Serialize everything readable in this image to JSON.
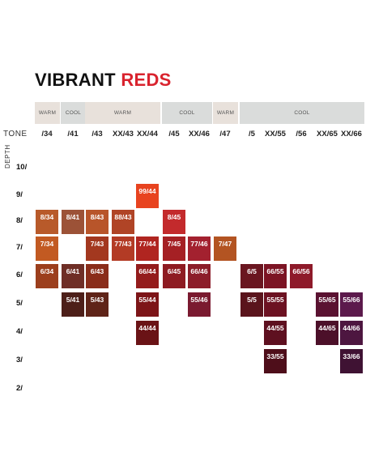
{
  "title": {
    "part1": "VIBRANT",
    "part2": "REDS"
  },
  "groups": [
    {
      "label": "WARM",
      "bg": "#e8e1db",
      "from": "34",
      "to": "34"
    },
    {
      "label": "COOL",
      "bg": "#dadcdb",
      "from": "41",
      "to": "41"
    },
    {
      "label": "WARM",
      "bg": "#e8e1db",
      "from": "43",
      "to": "44"
    },
    {
      "label": "COOL",
      "bg": "#dadcdb",
      "from": "45",
      "to": "46"
    },
    {
      "label": "WARM",
      "bg": "#e8e1db",
      "from": "47",
      "to": "47"
    },
    {
      "label": "COOL",
      "bg": "#dadcdb",
      "from": "5",
      "to": "66"
    }
  ],
  "tone_label": "TONE",
  "depth_label": "DEPTH",
  "columns": [
    {
      "key": "34",
      "label": "/34"
    },
    {
      "key": "41",
      "label": "/41"
    },
    {
      "key": "43",
      "label": "/43"
    },
    {
      "key": "4344",
      "label": "XX/43"
    },
    {
      "key": "44",
      "label": "XX/44"
    },
    {
      "key": "45",
      "label": "/45"
    },
    {
      "key": "46",
      "label": "XX/46"
    },
    {
      "key": "47",
      "label": "/47"
    },
    {
      "key": "5",
      "label": "/5"
    },
    {
      "key": "55",
      "label": "XX/55"
    },
    {
      "key": "56",
      "label": "/56"
    },
    {
      "key": "65",
      "label": "XX/65"
    },
    {
      "key": "66",
      "label": "XX/66"
    }
  ],
  "rows": [
    {
      "key": "10",
      "label": "10/"
    },
    {
      "key": "9",
      "label": "9/"
    },
    {
      "key": "8",
      "label": "8/"
    },
    {
      "key": "7",
      "label": "7/"
    },
    {
      "key": "6",
      "label": "6/"
    },
    {
      "key": "5",
      "label": "5/"
    },
    {
      "key": "4",
      "label": "4/"
    },
    {
      "key": "3",
      "label": "3/"
    },
    {
      "key": "2",
      "label": "2/"
    }
  ],
  "swatches": [
    {
      "row": "9",
      "col": "44",
      "label": "99/44",
      "color": "#e8431f"
    },
    {
      "row": "8",
      "col": "34",
      "label": "8/34",
      "color": "#b85a2a"
    },
    {
      "row": "8",
      "col": "41",
      "label": "8/41",
      "color": "#9c5237"
    },
    {
      "row": "8",
      "col": "43",
      "label": "8/43",
      "color": "#b8552a"
    },
    {
      "row": "8",
      "col": "4344",
      "label": "88/43",
      "color": "#b04426"
    },
    {
      "row": "8",
      "col": "45",
      "label": "8/45",
      "color": "#c32a2c"
    },
    {
      "row": "7",
      "col": "34",
      "label": "7/34",
      "color": "#c25a22"
    },
    {
      "row": "7",
      "col": "43",
      "label": "7/43",
      "color": "#a3381f"
    },
    {
      "row": "7",
      "col": "4344",
      "label": "77/43",
      "color": "#b33b25"
    },
    {
      "row": "7",
      "col": "44",
      "label": "77/44",
      "color": "#b02520"
    },
    {
      "row": "7",
      "col": "45",
      "label": "7/45",
      "color": "#a52024"
    },
    {
      "row": "7",
      "col": "46",
      "label": "77/46",
      "color": "#a3212f"
    },
    {
      "row": "7",
      "col": "47",
      "label": "7/47",
      "color": "#b35422"
    },
    {
      "row": "6",
      "col": "34",
      "label": "6/34",
      "color": "#9c3f1d"
    },
    {
      "row": "6",
      "col": "41",
      "label": "6/41",
      "color": "#6f2e26"
    },
    {
      "row": "6",
      "col": "43",
      "label": "6/43",
      "color": "#8a2d1a"
    },
    {
      "row": "6",
      "col": "44",
      "label": "66/44",
      "color": "#941c1c"
    },
    {
      "row": "6",
      "col": "45",
      "label": "6/45",
      "color": "#8e1b22"
    },
    {
      "row": "6",
      "col": "46",
      "label": "66/46",
      "color": "#8c1d2a"
    },
    {
      "row": "6",
      "col": "5",
      "label": "6/5",
      "color": "#6a1620"
    },
    {
      "row": "6",
      "col": "55",
      "label": "66/55",
      "color": "#7c1424"
    },
    {
      "row": "6",
      "col": "56",
      "label": "66/56",
      "color": "#8e1a2a"
    },
    {
      "row": "5",
      "col": "41",
      "label": "5/41",
      "color": "#4d1f19"
    },
    {
      "row": "5",
      "col": "43",
      "label": "5/43",
      "color": "#5f2418"
    },
    {
      "row": "5",
      "col": "44",
      "label": "55/44",
      "color": "#7d1518"
    },
    {
      "row": "5",
      "col": "46",
      "label": "55/46",
      "color": "#7a1a30"
    },
    {
      "row": "5",
      "col": "5",
      "label": "5/5",
      "color": "#5a141c"
    },
    {
      "row": "5",
      "col": "55",
      "label": "55/55",
      "color": "#6c1222"
    },
    {
      "row": "5",
      "col": "65",
      "label": "55/65",
      "color": "#5a1231"
    },
    {
      "row": "5",
      "col": "66",
      "label": "55/66",
      "color": "#5c1a4c"
    },
    {
      "row": "4",
      "col": "44",
      "label": "44/44",
      "color": "#6a1316"
    },
    {
      "row": "4",
      "col": "55",
      "label": "44/55",
      "color": "#5e1020"
    },
    {
      "row": "4",
      "col": "65",
      "label": "44/65",
      "color": "#4c1029"
    },
    {
      "row": "4",
      "col": "66",
      "label": "44/66",
      "color": "#4d1640"
    },
    {
      "row": "3",
      "col": "55",
      "label": "33/55",
      "color": "#4e0e1a"
    },
    {
      "row": "3",
      "col": "66",
      "label": "33/66",
      "color": "#3f1233"
    }
  ]
}
